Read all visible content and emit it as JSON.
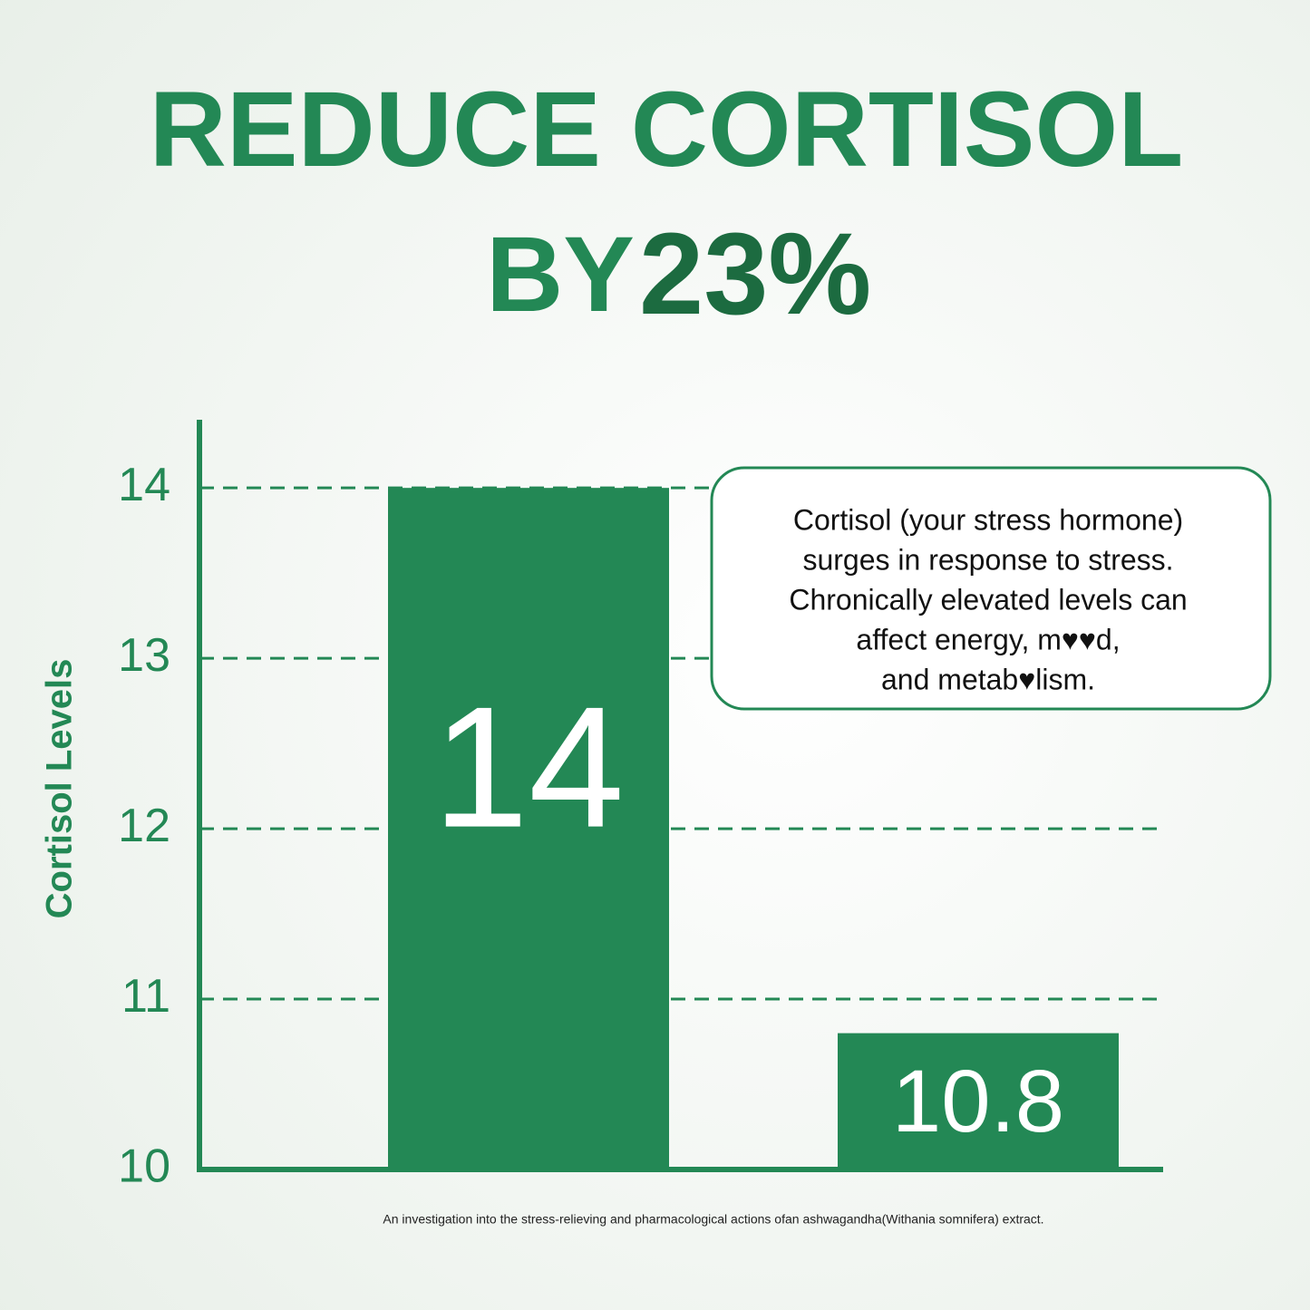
{
  "chart_data": {
    "type": "bar",
    "title": [
      "REDUCE CORTISOL",
      "BY",
      "23%"
    ],
    "ylabel": "Cortisol Levels",
    "categories": [
      null,
      null
    ],
    "values": [
      14,
      10.8
    ],
    "color": "#238855",
    "ylim": [
      10,
      14.4
    ],
    "yticks": [
      10,
      11,
      12,
      13,
      14
    ],
    "grid": true,
    "annotation": [
      "Cortisol (your stress hormone)",
      "surges in response to stress.",
      "Chronically elevated levels can",
      "affect energy, m♥♥d,",
      "and metab♥lism."
    ],
    "source": "An investigation into the stress-relieving and pharmacological actions ofan ashwagandha(Withania somnifera) extract."
  }
}
